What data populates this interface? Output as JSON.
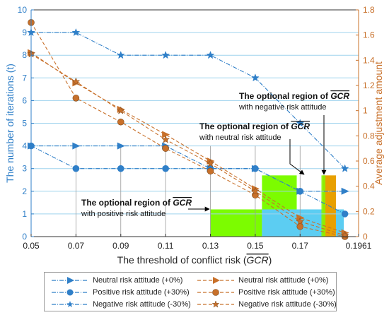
{
  "chart_data": {
    "type": "line",
    "title": "",
    "xlabel": "The threshold of conflict risk (GCR)",
    "ylabel_left": "The number of iterations (t)",
    "ylabel_right": "Average adjustment amount",
    "x": [
      0.05,
      0.07,
      0.09,
      0.11,
      0.13,
      0.15,
      0.17,
      0.19
    ],
    "x_tick_labels": [
      "0.05",
      "0.07",
      "0.09",
      "0.11",
      "0.13",
      "0.15",
      "0.17",
      "0.1961"
    ],
    "x_tick_values": [
      0.05,
      0.07,
      0.09,
      0.11,
      0.13,
      0.15,
      0.17,
      0.1961
    ],
    "xlim": [
      0.05,
      0.1961
    ],
    "ylim_left": [
      0,
      10
    ],
    "ylim_right": [
      0,
      1.8
    ],
    "y_left_ticks": [
      0,
      1,
      2,
      3,
      4,
      5,
      6,
      7,
      8,
      9,
      10
    ],
    "y_right_ticks": [
      "0",
      "0.2",
      "0.4",
      "0.6",
      "0.8",
      "1",
      "1.2",
      "1.4",
      "1.6",
      "1.8"
    ],
    "grid": true,
    "colors": {
      "left": "#2f7fc8",
      "right": "#c8702a",
      "cyan": "#3fc4f0",
      "green": "#7cfc00",
      "orange": "#e8a000"
    },
    "series": [
      {
        "name": "Neutral risk attitude (+0%)",
        "axis": "left",
        "marker": "triangle",
        "color": "#2f7fc8",
        "values": [
          4,
          4,
          4,
          4,
          3,
          3,
          2,
          2
        ]
      },
      {
        "name": "Positive risk attitude (+30%)",
        "axis": "left",
        "marker": "circle",
        "color": "#2f7fc8",
        "values": [
          4,
          3,
          3,
          3,
          3,
          3,
          2,
          1
        ]
      },
      {
        "name": "Negative risk attitude (-30%)",
        "axis": "left",
        "marker": "star",
        "color": "#2f7fc8",
        "values": [
          9,
          9,
          8,
          8,
          8,
          7,
          5,
          3
        ]
      },
      {
        "name": "Neutral risk attitude (+0%)",
        "axis": "right",
        "marker": "triangle",
        "color": "#c8702a",
        "values": [
          1.46,
          1.22,
          1.01,
          0.81,
          0.6,
          0.38,
          0.15,
          0.03
        ]
      },
      {
        "name": "Positive risk attitude (+30%)",
        "axis": "right",
        "marker": "circle",
        "color": "#c8702a",
        "values": [
          1.7,
          1.1,
          0.91,
          0.7,
          0.52,
          0.33,
          0.08,
          0.0
        ]
      },
      {
        "name": "Negative risk attitude (-30%)",
        "axis": "right",
        "marker": "star",
        "color": "#c8702a",
        "values": [
          1.45,
          1.23,
          1.0,
          0.77,
          0.58,
          0.36,
          0.12,
          0.01
        ]
      }
    ],
    "annotations": [
      {
        "title": "The optional region of GCR",
        "subtitle": "with negative risk attitude"
      },
      {
        "title": "The optional region of GCR",
        "subtitle": "with neutral risk attitude"
      },
      {
        "title": "The optional region of GCR",
        "subtitle": "with positive risk attitude"
      }
    ],
    "legend": {
      "placement": "bottom",
      "entries": [
        "Neutral risk attitude (+0%)",
        "Neutral risk attitude (+0%)",
        "Positive risk attitude (+30%)",
        "Positive risk attitude (+30%)",
        "Negative risk attitude (-30%)",
        "Negative risk attitude (-30%)"
      ]
    }
  }
}
